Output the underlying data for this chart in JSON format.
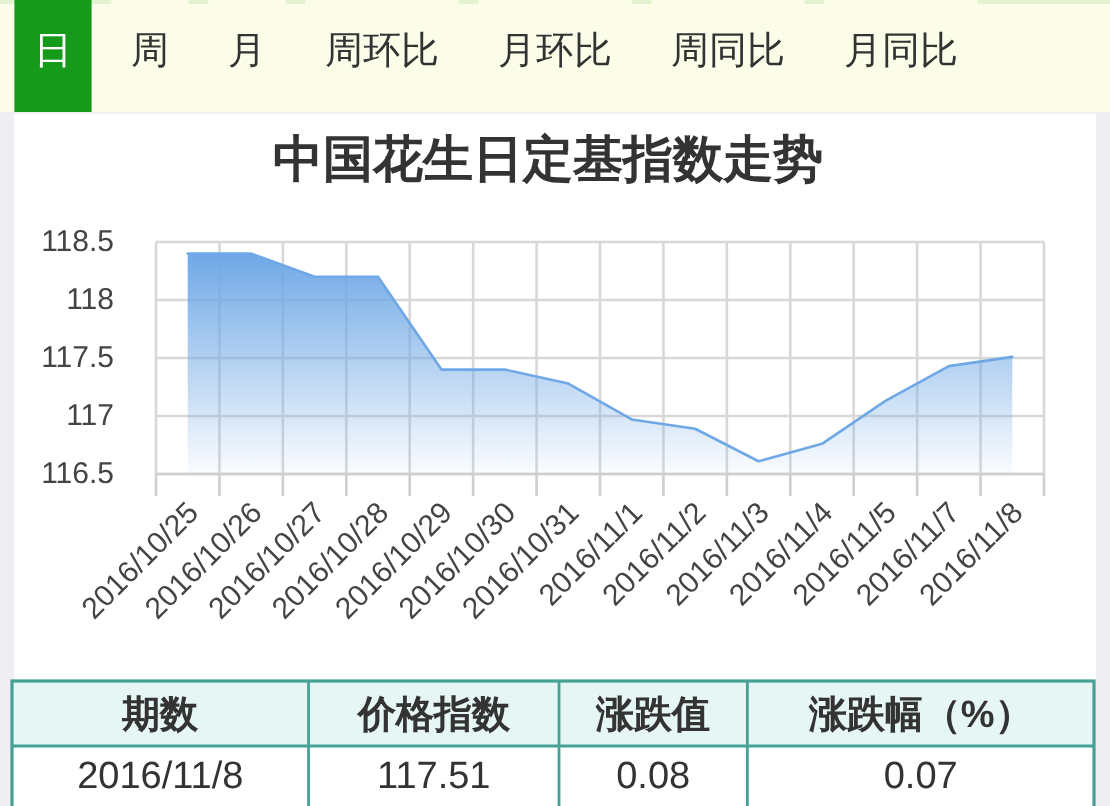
{
  "chart_data": [
    {
      "type": "other",
      "categories": [
        "日",
        "周",
        "月",
        "周环比",
        "月环比",
        "周同比",
        "月同比"
      ],
      "colors": [
        "#169a1a",
        "#fbfde9",
        "#fbfde9",
        "#fbfde9",
        "#fbfde9",
        "#fbfde9",
        "#fbfde9"
      ]
    },
    {
      "type": "area",
      "title": "中国花生日定基指数走势",
      "categories": [
        "2016/10/25",
        "2016/10/26",
        "2016/10/27",
        "2016/10/28",
        "2016/10/29",
        "2016/10/30",
        "2016/10/31",
        "2016/11/1",
        "2016/11/2",
        "2016/11/3",
        "2016/11/4",
        "2016/11/5",
        "2016/11/7",
        "2016/11/8"
      ],
      "values": [
        118.4,
        118.4,
        118.2,
        118.2,
        117.4,
        117.4,
        117.28,
        116.97,
        116.89,
        116.61,
        116.76,
        117.13,
        117.43,
        117.51
      ],
      "color": "#6fa8e6",
      "ylim": [
        116.5,
        118.5
      ],
      "yticks": [
        116.5,
        117,
        117.5,
        118,
        118.5
      ],
      "grid": true
    },
    {
      "type": "other",
      "categories": [
        "期数",
        "价格指数",
        "涨跌值",
        "涨跌幅（%）"
      ],
      "annotations": [
        "2016/11/8",
        "117.51",
        "0.08",
        "0.07"
      ]
    }
  ]
}
